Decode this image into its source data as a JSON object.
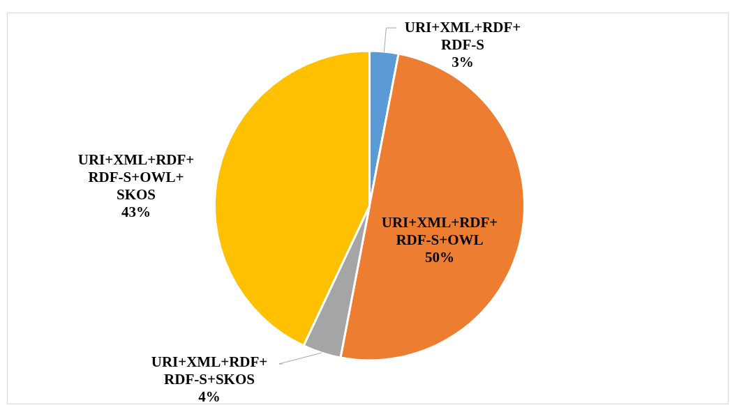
{
  "chart_data": {
    "type": "pie",
    "categories": [
      "URI+XML+RDF+RDF-S",
      "URI+XML+RDF+RDF-S+OWL",
      "URI+XML+RDF+RDF-S+SKOS",
      "URI+XML+RDF+RDF-S+OWL+SKOS"
    ],
    "values": [
      3,
      50,
      4,
      43
    ],
    "colors": [
      "#5b9bd5",
      "#ed7d31",
      "#a5a5a5",
      "#ffc000"
    ],
    "value_labels": [
      "3%",
      "50%",
      "4%",
      "43%"
    ],
    "legend": false
  }
}
